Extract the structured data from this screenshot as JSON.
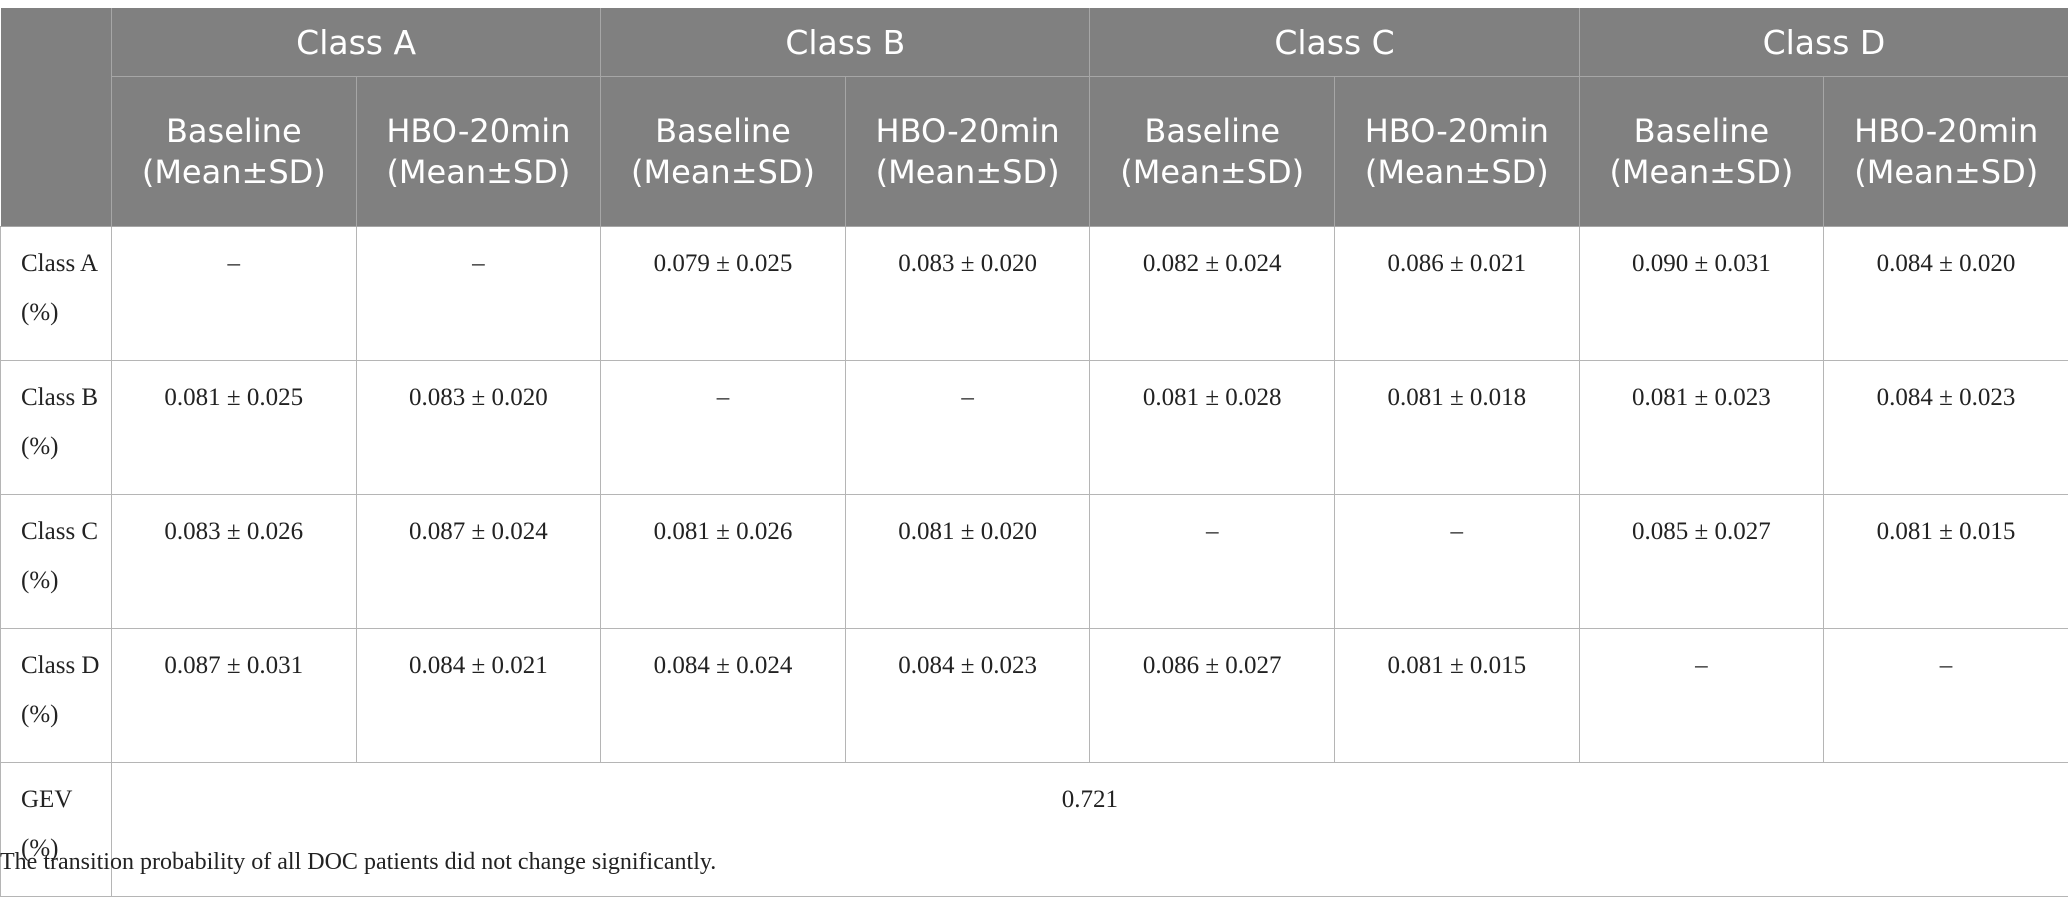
{
  "table": {
    "corner": "",
    "group_headers": [
      "Class A",
      "Class B",
      "Class C",
      "Class D"
    ],
    "sub_headers": [
      "Baseline (Mean±SD)",
      "HBO-20min (Mean±SD)",
      "Baseline (Mean±SD)",
      "HBO-20min (Mean±SD)",
      "Baseline (Mean±SD)",
      "HBO-20min (Mean±SD)",
      "Baseline (Mean±SD)",
      "HBO-20min (Mean±SD)"
    ],
    "rows": [
      {
        "label": "Class A (%)",
        "cells": [
          "–",
          "–",
          "0.079 ± 0.025",
          "0.083 ± 0.020",
          "0.082 ± 0.024",
          "0.086 ± 0.021",
          "0.090 ± 0.031",
          "0.084 ± 0.020"
        ]
      },
      {
        "label": "Class B (%)",
        "cells": [
          "0.081 ± 0.025",
          "0.083 ± 0.020",
          "–",
          "–",
          "0.081 ± 0.028",
          "0.081 ± 0.018",
          "0.081 ± 0.023",
          "0.084 ± 0.023"
        ]
      },
      {
        "label": "Class C (%)",
        "cells": [
          "0.083 ± 0.026",
          "0.087 ± 0.024",
          "0.081 ± 0.026",
          "0.081 ± 0.020",
          "–",
          "–",
          "0.085 ± 0.027",
          "0.081 ± 0.015"
        ]
      },
      {
        "label": "Class D (%)",
        "cells": [
          "0.087 ± 0.031",
          "0.084 ± 0.021",
          "0.084 ± 0.024",
          "0.084 ± 0.023",
          "0.086 ± 0.027",
          "0.081 ± 0.015",
          "–",
          "–"
        ]
      }
    ],
    "gev": {
      "label": "GEV (%)",
      "value": "0.721"
    }
  },
  "footnote": "The transition probability of all DOC patients did not change significantly."
}
